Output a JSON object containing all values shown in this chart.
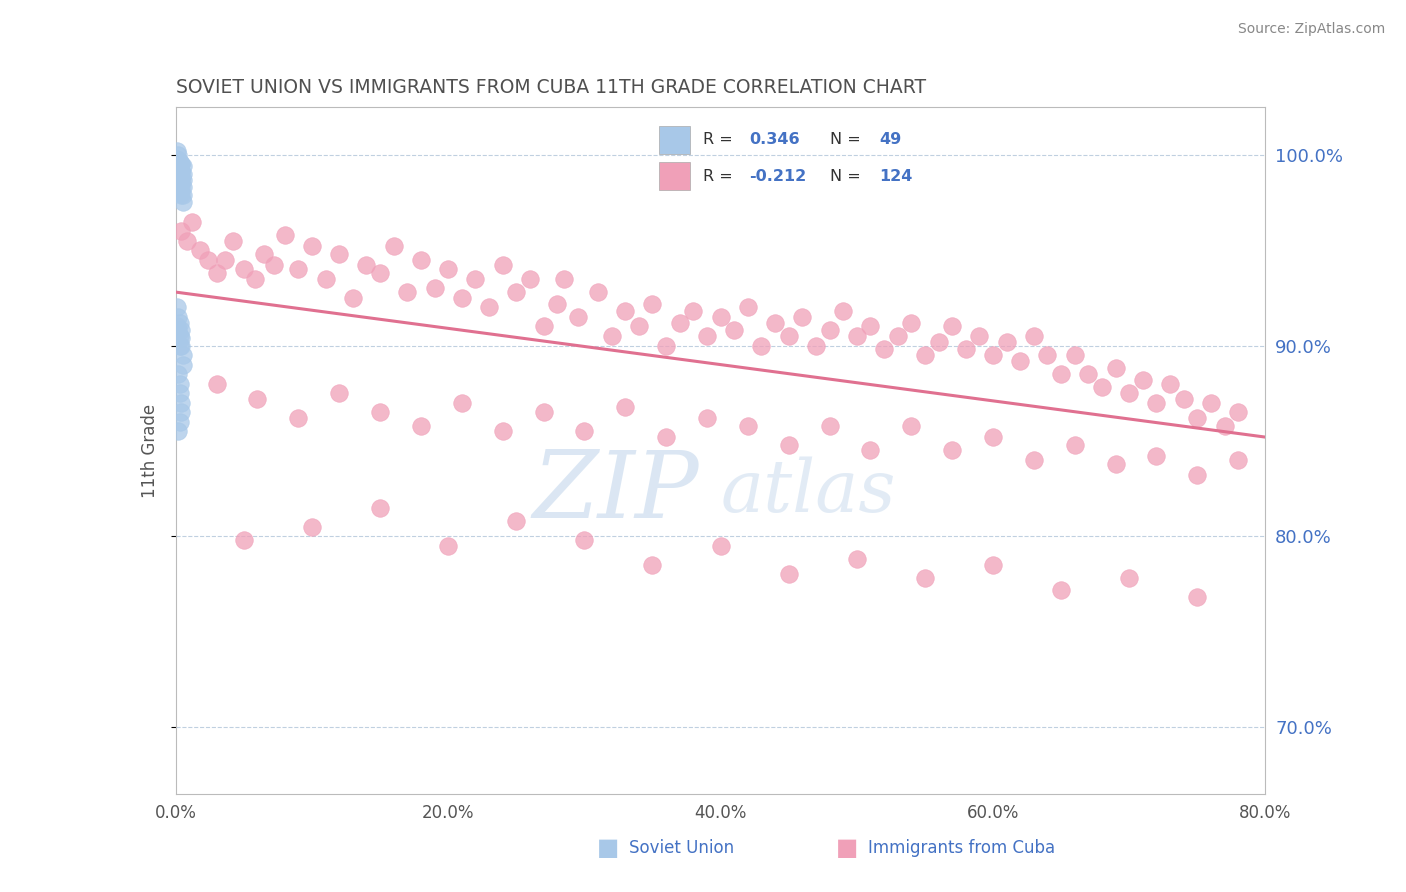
{
  "title": "SOVIET UNION VS IMMIGRANTS FROM CUBA 11TH GRADE CORRELATION CHART",
  "source_text": "Source: ZipAtlas.com",
  "ylabel": "11th Grade",
  "right_ylabel_color": "#4472c4",
  "watermark_zip": "ZIP",
  "watermark_atlas": "atlas",
  "xlim": [
    0.0,
    0.8
  ],
  "ylim": [
    0.665,
    1.025
  ],
  "yticks_right": [
    0.7,
    0.8,
    0.9,
    1.0
  ],
  "ytick_labels_right": [
    "70.0%",
    "80.0%",
    "90.0%",
    "100.0%"
  ],
  "xticks": [
    0.0,
    0.2,
    0.4,
    0.6,
    0.8
  ],
  "xtick_labels": [
    "0.0%",
    "20.0%",
    "40.0%",
    "60.0%",
    "80.0%"
  ],
  "legend_R1": "0.346",
  "legend_N1": "49",
  "legend_R2": "-0.212",
  "legend_N2": "124",
  "series1_color": "#a8c8e8",
  "series2_color": "#f0a0b8",
  "trendline_color": "#e07090",
  "background_color": "#ffffff",
  "grid_color": "#c0d0e0",
  "title_color": "#505050",
  "label_color": "#4472c4",
  "soviet_x": [
    0.001,
    0.001,
    0.001,
    0.002,
    0.002,
    0.002,
    0.002,
    0.002,
    0.002,
    0.003,
    0.003,
    0.003,
    0.003,
    0.003,
    0.003,
    0.003,
    0.003,
    0.004,
    0.004,
    0.004,
    0.004,
    0.004,
    0.004,
    0.004,
    0.005,
    0.005,
    0.005,
    0.005,
    0.005,
    0.005,
    0.001,
    0.001,
    0.002,
    0.002,
    0.003,
    0.003,
    0.003,
    0.004,
    0.004,
    0.004,
    0.005,
    0.005,
    0.002,
    0.003,
    0.003,
    0.004,
    0.004,
    0.003,
    0.002
  ],
  "soviet_y": [
    1.002,
    0.998,
    0.994,
    0.997,
    0.993,
    0.989,
    0.985,
    1.0,
    0.996,
    0.992,
    0.988,
    0.984,
    0.98,
    0.996,
    0.992,
    0.988,
    0.984,
    0.995,
    0.991,
    0.987,
    0.983,
    0.979,
    0.995,
    0.991,
    0.987,
    0.983,
    0.979,
    0.975,
    0.994,
    0.99,
    0.92,
    0.91,
    0.915,
    0.908,
    0.912,
    0.905,
    0.9,
    0.908,
    0.904,
    0.9,
    0.895,
    0.89,
    0.885,
    0.88,
    0.875,
    0.87,
    0.865,
    0.86,
    0.855
  ],
  "cuba_x": [
    0.004,
    0.008,
    0.012,
    0.018,
    0.024,
    0.03,
    0.036,
    0.042,
    0.05,
    0.058,
    0.065,
    0.072,
    0.08,
    0.09,
    0.1,
    0.11,
    0.12,
    0.13,
    0.14,
    0.15,
    0.16,
    0.17,
    0.18,
    0.19,
    0.2,
    0.21,
    0.22,
    0.23,
    0.24,
    0.25,
    0.26,
    0.27,
    0.28,
    0.285,
    0.295,
    0.31,
    0.32,
    0.33,
    0.34,
    0.35,
    0.36,
    0.37,
    0.38,
    0.39,
    0.4,
    0.41,
    0.42,
    0.43,
    0.44,
    0.45,
    0.46,
    0.47,
    0.48,
    0.49,
    0.5,
    0.51,
    0.52,
    0.53,
    0.54,
    0.55,
    0.56,
    0.57,
    0.58,
    0.59,
    0.6,
    0.61,
    0.62,
    0.63,
    0.64,
    0.65,
    0.66,
    0.67,
    0.68,
    0.69,
    0.7,
    0.71,
    0.72,
    0.73,
    0.74,
    0.75,
    0.76,
    0.77,
    0.78,
    0.03,
    0.06,
    0.09,
    0.12,
    0.15,
    0.18,
    0.21,
    0.24,
    0.27,
    0.3,
    0.33,
    0.36,
    0.39,
    0.42,
    0.45,
    0.48,
    0.51,
    0.54,
    0.57,
    0.6,
    0.63,
    0.66,
    0.69,
    0.72,
    0.75,
    0.78,
    0.05,
    0.1,
    0.15,
    0.2,
    0.25,
    0.3,
    0.35,
    0.4,
    0.45,
    0.5,
    0.55,
    0.6,
    0.65,
    0.7,
    0.75
  ],
  "cuba_y": [
    0.96,
    0.955,
    0.965,
    0.95,
    0.945,
    0.938,
    0.945,
    0.955,
    0.94,
    0.935,
    0.948,
    0.942,
    0.958,
    0.94,
    0.952,
    0.935,
    0.948,
    0.925,
    0.942,
    0.938,
    0.952,
    0.928,
    0.945,
    0.93,
    0.94,
    0.925,
    0.935,
    0.92,
    0.942,
    0.928,
    0.935,
    0.91,
    0.922,
    0.935,
    0.915,
    0.928,
    0.905,
    0.918,
    0.91,
    0.922,
    0.9,
    0.912,
    0.918,
    0.905,
    0.915,
    0.908,
    0.92,
    0.9,
    0.912,
    0.905,
    0.915,
    0.9,
    0.908,
    0.918,
    0.905,
    0.91,
    0.898,
    0.905,
    0.912,
    0.895,
    0.902,
    0.91,
    0.898,
    0.905,
    0.895,
    0.902,
    0.892,
    0.905,
    0.895,
    0.885,
    0.895,
    0.885,
    0.878,
    0.888,
    0.875,
    0.882,
    0.87,
    0.88,
    0.872,
    0.862,
    0.87,
    0.858,
    0.865,
    0.88,
    0.872,
    0.862,
    0.875,
    0.865,
    0.858,
    0.87,
    0.855,
    0.865,
    0.855,
    0.868,
    0.852,
    0.862,
    0.858,
    0.848,
    0.858,
    0.845,
    0.858,
    0.845,
    0.852,
    0.84,
    0.848,
    0.838,
    0.842,
    0.832,
    0.84,
    0.798,
    0.805,
    0.815,
    0.795,
    0.808,
    0.798,
    0.785,
    0.795,
    0.78,
    0.788,
    0.778,
    0.785,
    0.772,
    0.778,
    0.768
  ],
  "trendline_x": [
    0.0,
    0.8
  ],
  "trendline_y": [
    0.928,
    0.852
  ]
}
